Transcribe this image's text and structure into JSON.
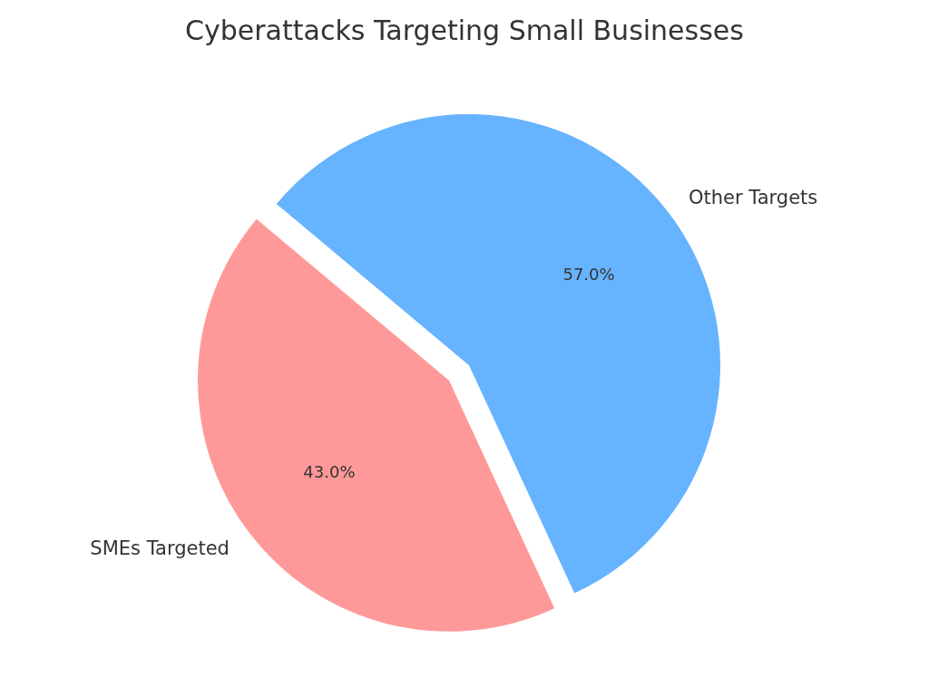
{
  "chart_data": {
    "type": "pie",
    "title": "Cyberattacks Targeting Small Businesses",
    "categories": [
      "SMEs Targeted",
      "Other Targets"
    ],
    "values": [
      43,
      57
    ],
    "colors": [
      "#ff9999",
      "#66b3ff"
    ],
    "value_labels": [
      "43.0%",
      "57.0%"
    ],
    "legend": false
  }
}
